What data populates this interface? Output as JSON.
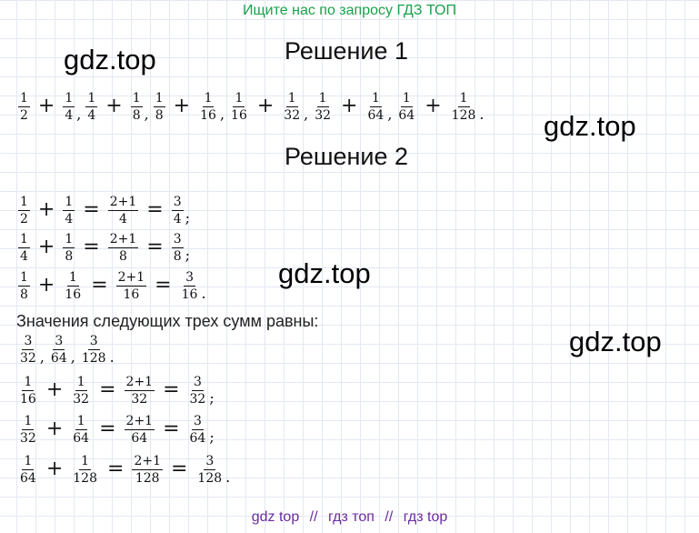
{
  "banner": "Ищите нас по запросу ГДЗ ТОП",
  "watermarks": [
    "gdz.top",
    "gdz.top",
    "gdz.top",
    "gdz.top"
  ],
  "solution1": {
    "title": "Решение 1",
    "line": [
      {
        "t": "f",
        "n": "1",
        "d": "2"
      },
      {
        "t": "o",
        "v": "+"
      },
      {
        "t": "f",
        "n": "1",
        "d": "4"
      },
      {
        "t": "p",
        "v": ","
      },
      {
        "t": "f",
        "n": "1",
        "d": "4"
      },
      {
        "t": "o",
        "v": "+"
      },
      {
        "t": "f",
        "n": "1",
        "d": "8"
      },
      {
        "t": "p",
        "v": ","
      },
      {
        "t": "f",
        "n": "1",
        "d": "8"
      },
      {
        "t": "o",
        "v": "+"
      },
      {
        "t": "f",
        "n": "1",
        "d": "16"
      },
      {
        "t": "p",
        "v": ","
      },
      {
        "t": "f",
        "n": "1",
        "d": "16"
      },
      {
        "t": "o",
        "v": "+"
      },
      {
        "t": "f",
        "n": "1",
        "d": "32"
      },
      {
        "t": "p",
        "v": ","
      },
      {
        "t": "f",
        "n": "1",
        "d": "32"
      },
      {
        "t": "o",
        "v": "+"
      },
      {
        "t": "f",
        "n": "1",
        "d": "64"
      },
      {
        "t": "p",
        "v": ","
      },
      {
        "t": "f",
        "n": "1",
        "d": "64"
      },
      {
        "t": "o",
        "v": "+"
      },
      {
        "t": "f",
        "n": "1",
        "d": "128"
      },
      {
        "t": "p",
        "v": "."
      }
    ]
  },
  "solution2": {
    "title": "Решение 2",
    "lines": [
      [
        {
          "t": "f",
          "n": "1",
          "d": "2"
        },
        {
          "t": "o",
          "v": "+"
        },
        {
          "t": "f",
          "n": "1",
          "d": "4"
        },
        {
          "t": "o",
          "v": "="
        },
        {
          "t": "f",
          "n": "2+1",
          "d": "4"
        },
        {
          "t": "o",
          "v": "="
        },
        {
          "t": "f",
          "n": "3",
          "d": "4"
        },
        {
          "t": "p",
          "v": ";"
        }
      ],
      [
        {
          "t": "f",
          "n": "1",
          "d": "4"
        },
        {
          "t": "o",
          "v": "+"
        },
        {
          "t": "f",
          "n": "1",
          "d": "8"
        },
        {
          "t": "o",
          "v": "="
        },
        {
          "t": "f",
          "n": "2+1",
          "d": "8"
        },
        {
          "t": "o",
          "v": "="
        },
        {
          "t": "f",
          "n": "3",
          "d": "8"
        },
        {
          "t": "p",
          "v": ";"
        }
      ],
      [
        {
          "t": "f",
          "n": "1",
          "d": "8"
        },
        {
          "t": "o",
          "v": "+"
        },
        {
          "t": "f",
          "n": "1",
          "d": "16"
        },
        {
          "t": "o",
          "v": "="
        },
        {
          "t": "f",
          "n": "2+1",
          "d": "16"
        },
        {
          "t": "o",
          "v": "="
        },
        {
          "t": "f",
          "n": "3",
          "d": "16"
        },
        {
          "t": "p",
          "v": "."
        }
      ]
    ],
    "text": "Значения следующих трех сумм равны:",
    "values_line": [
      {
        "t": "f",
        "n": "3",
        "d": "32"
      },
      {
        "t": "p",
        "v": ","
      },
      {
        "t": "f",
        "n": "3",
        "d": "64"
      },
      {
        "t": "p",
        "v": ","
      },
      {
        "t": "f",
        "n": "3",
        "d": "128"
      },
      {
        "t": "p",
        "v": "."
      }
    ],
    "lines2": [
      [
        {
          "t": "f",
          "n": "1",
          "d": "16"
        },
        {
          "t": "o",
          "v": "+"
        },
        {
          "t": "f",
          "n": "1",
          "d": "32"
        },
        {
          "t": "o",
          "v": "="
        },
        {
          "t": "f",
          "n": "2+1",
          "d": "32"
        },
        {
          "t": "o",
          "v": "="
        },
        {
          "t": "f",
          "n": "3",
          "d": "32"
        },
        {
          "t": "p",
          "v": ";"
        }
      ],
      [
        {
          "t": "f",
          "n": "1",
          "d": "32"
        },
        {
          "t": "o",
          "v": "+"
        },
        {
          "t": "f",
          "n": "1",
          "d": "64"
        },
        {
          "t": "o",
          "v": "="
        },
        {
          "t": "f",
          "n": "2+1",
          "d": "64"
        },
        {
          "t": "o",
          "v": "="
        },
        {
          "t": "f",
          "n": "3",
          "d": "64"
        },
        {
          "t": "p",
          "v": ";"
        }
      ],
      [
        {
          "t": "f",
          "n": "1",
          "d": "64"
        },
        {
          "t": "o",
          "v": "+"
        },
        {
          "t": "f",
          "n": "1",
          "d": "128"
        },
        {
          "t": "o",
          "v": "="
        },
        {
          "t": "f",
          "n": "2+1",
          "d": "128"
        },
        {
          "t": "o",
          "v": "="
        },
        {
          "t": "f",
          "n": "3",
          "d": "128"
        },
        {
          "t": "p",
          "v": "."
        }
      ]
    ]
  },
  "footer": {
    "link1": "gdz top",
    "sep1": "//",
    "link2": "гдз топ",
    "sep2": "//",
    "link3": "гдз top"
  },
  "colors": {
    "banner": "#1aa14a",
    "footer": "#6a2ba0",
    "grid": "#e3e8f2"
  }
}
